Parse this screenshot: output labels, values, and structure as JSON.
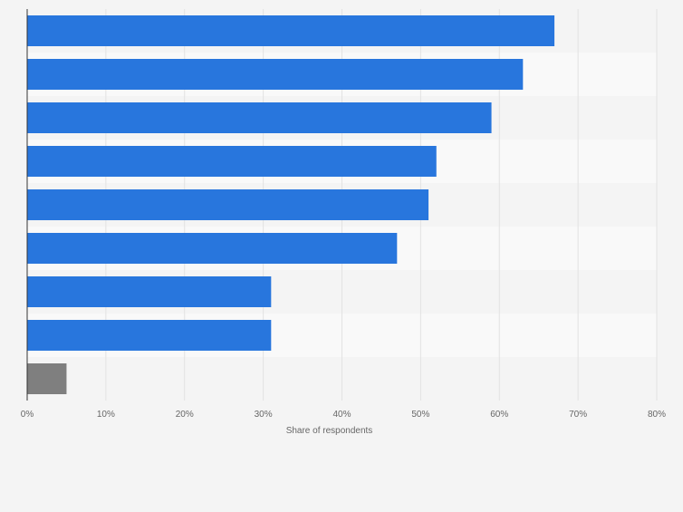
{
  "chart_data": {
    "type": "bar",
    "orientation": "horizontal",
    "categories": [
      "",
      "",
      "",
      "",
      "",
      "",
      "",
      "",
      ""
    ],
    "values": [
      67,
      63,
      59,
      52,
      51,
      47,
      31,
      31,
      5
    ],
    "value_unit": "%",
    "xlabel": "Share of respondents",
    "ylabel": "",
    "xlim": [
      0,
      80
    ],
    "x_ticks": [
      "0%",
      "10%",
      "20%",
      "30%",
      "40%",
      "50%",
      "60%",
      "70%",
      "80%"
    ],
    "grid": true,
    "legend": "none",
    "colors": {
      "bar": "#2876dd",
      "last_bar": "#7f7f7f",
      "band_even": "#f4f4f4",
      "band_odd": "#f9f9f9",
      "grid": "#e2e2e2",
      "axis": "#333333",
      "tick_text": "#666666"
    }
  }
}
